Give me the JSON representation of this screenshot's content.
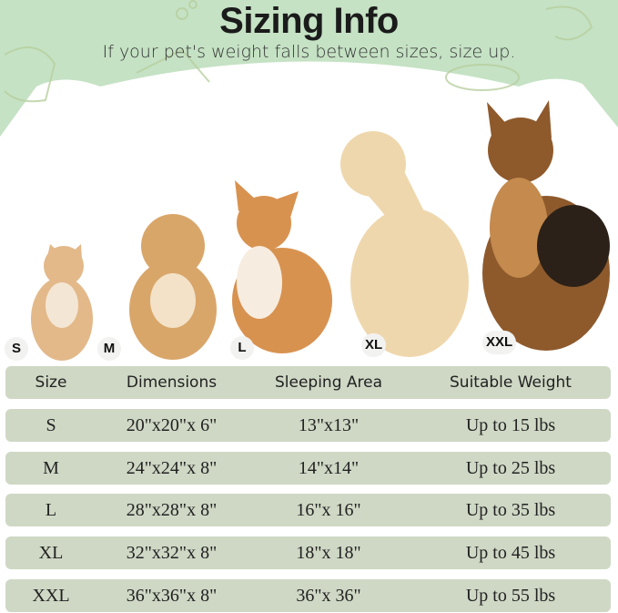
{
  "header": {
    "title": "Sizing Info",
    "subtitle": "If your pet's weight falls between sizes, size up."
  },
  "colors": {
    "background_green": "#c5e2c4",
    "row_fill": "#cfd8c5",
    "text": "#222222"
  },
  "pets": [
    {
      "size": "S",
      "animal": "cat"
    },
    {
      "size": "M",
      "animal": "poodle-mix dog"
    },
    {
      "size": "L",
      "animal": "corgi"
    },
    {
      "size": "XL",
      "animal": "golden retriever"
    },
    {
      "size": "XXL",
      "animal": "german shepherd"
    }
  ],
  "table": {
    "headers": [
      "Size",
      "Dimensions",
      "Sleeping Area",
      "Suitable Weight"
    ],
    "rows": [
      [
        "S",
        "20\"x20\"x 6\"",
        "13\"x13\"",
        "Up to 15 lbs"
      ],
      [
        "M",
        "24\"x24\"x 8\"",
        "14\"x14\"",
        "Up to 25 lbs"
      ],
      [
        "L",
        "28\"x28\"x 8\"",
        "16\"x 16\"",
        "Up to 35 lbs"
      ],
      [
        "XL",
        "32\"x32\"x 8\"",
        "18\"x 18\"",
        "Up to 45 lbs"
      ],
      [
        "XXL",
        "36\"x36\"x 8\"",
        "36\"x 36\"",
        "Up to 55 lbs"
      ]
    ]
  }
}
